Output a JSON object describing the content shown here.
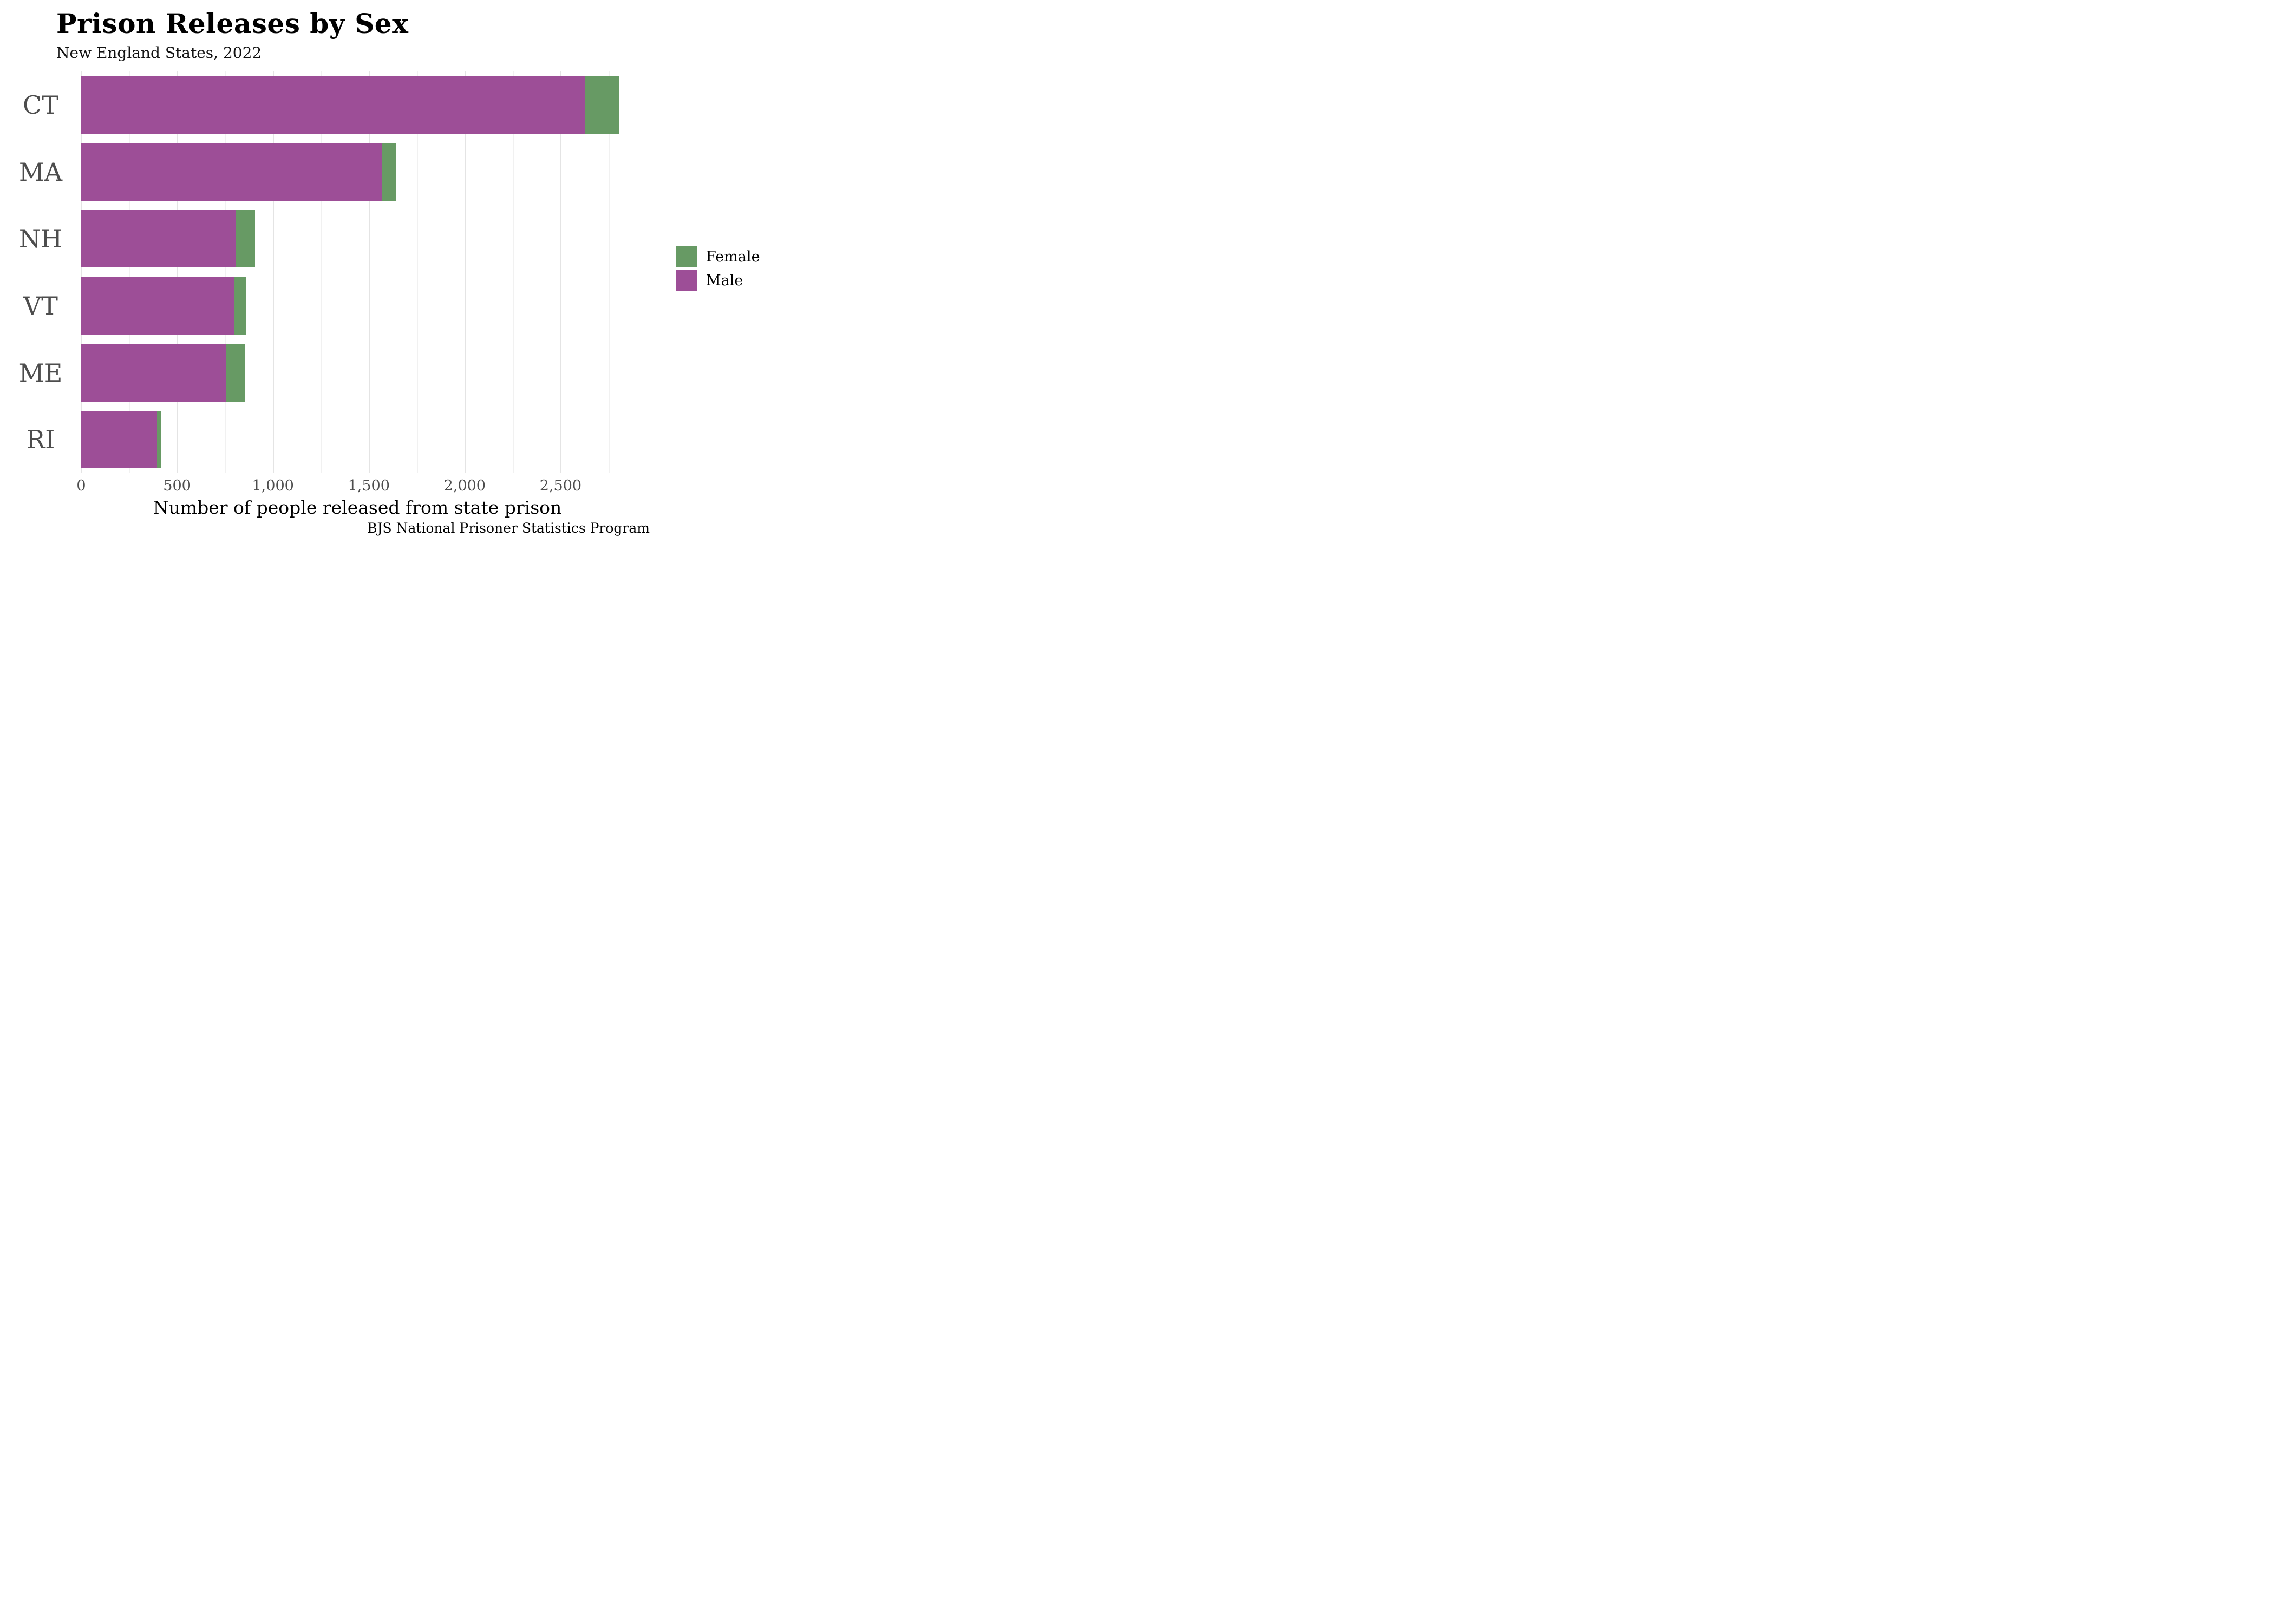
{
  "header": {
    "title": "Prison Releases by Sex",
    "subtitle": "New England States, 2022"
  },
  "caption": "BJS National Prisoner Statistics Program",
  "chart_data": {
    "type": "bar",
    "orientation": "horizontal",
    "stacked": true,
    "title": "Prison Releases by Sex",
    "subtitle": "New England States, 2022",
    "xlabel": "Number of people released from state prison",
    "ylabel": "",
    "categories": [
      "CT",
      "MA",
      "NH",
      "VT",
      "ME",
      "RI"
    ],
    "series": [
      {
        "name": "Male",
        "color": "#9d4e97",
        "values": [
          2630,
          1570,
          805,
          800,
          755,
          395
        ]
      },
      {
        "name": "Female",
        "color": "#679a64",
        "values": [
          175,
          70,
          100,
          57,
          100,
          20
        ]
      }
    ],
    "totals": [
      2805,
      1640,
      905,
      857,
      855,
      415
    ],
    "xlim": [
      0,
      2880
    ],
    "xticks": [
      0,
      500,
      1000,
      1500,
      2000,
      2500
    ],
    "xtick_labels": [
      "0",
      "500",
      "1,000",
      "1,500",
      "2,000",
      "2,500"
    ],
    "xticks_minor": [
      250,
      750,
      1250,
      1750,
      2250,
      2750
    ],
    "grid": true,
    "legend": {
      "position": "right",
      "entries": [
        {
          "label": "Female",
          "color": "#679a64"
        },
        {
          "label": "Male",
          "color": "#9d4e97"
        }
      ]
    },
    "source": "BJS National Prisoner Statistics Program"
  }
}
